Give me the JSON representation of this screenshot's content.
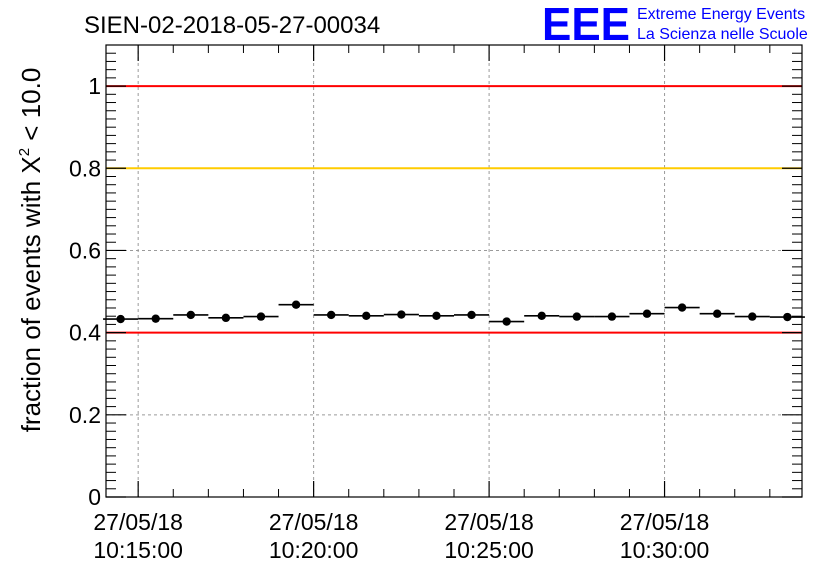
{
  "header": {
    "run_title": "SIEN-02-2018-05-27-00034",
    "logo": {
      "letters": "EEE",
      "line1": "Extreme Energy Events",
      "line2": "La Scienza nelle Scuole",
      "color": "#0000ff"
    }
  },
  "chart_data": {
    "type": "scatter",
    "title": "",
    "xlabel": "",
    "ylabel_prefix": "fraction of events with ",
    "ylabel_symbol": "X",
    "ylabel_superscript": "2",
    "ylabel_suffix": " < 10.0",
    "x_range": [
      "2018-05-27 10:14:05",
      "2018-05-27 10:33:55"
    ],
    "ylim": [
      0,
      1.1
    ],
    "grid": true,
    "x_ticks": [
      {
        "date": "27/05/18",
        "time": "10:15:00"
      },
      {
        "date": "27/05/18",
        "time": "10:20:00"
      },
      {
        "date": "27/05/18",
        "time": "10:25:00"
      },
      {
        "date": "27/05/18",
        "time": "10:30:00"
      }
    ],
    "y_ticks": [
      "0",
      "0.2",
      "0.4",
      "0.6",
      "0.8",
      "1"
    ],
    "y_tick_values": [
      0,
      0.2,
      0.4,
      0.6,
      0.8,
      1
    ],
    "reference_lines": [
      {
        "y": 1.0,
        "color": "#ff0000"
      },
      {
        "y": 0.8,
        "color": "#ffcc00"
      },
      {
        "y": 0.4,
        "color": "#ff0000"
      }
    ],
    "bin_width_seconds": 60,
    "points": [
      {
        "x": "10:14:30",
        "y": 0.433
      },
      {
        "x": "10:15:30",
        "y": 0.434
      },
      {
        "x": "10:16:30",
        "y": 0.443
      },
      {
        "x": "10:17:30",
        "y": 0.436
      },
      {
        "x": "10:18:30",
        "y": 0.439
      },
      {
        "x": "10:19:30",
        "y": 0.468
      },
      {
        "x": "10:20:30",
        "y": 0.443
      },
      {
        "x": "10:21:30",
        "y": 0.441
      },
      {
        "x": "10:22:30",
        "y": 0.444
      },
      {
        "x": "10:23:30",
        "y": 0.441
      },
      {
        "x": "10:24:30",
        "y": 0.443
      },
      {
        "x": "10:25:30",
        "y": 0.427
      },
      {
        "x": "10:26:30",
        "y": 0.441
      },
      {
        "x": "10:27:30",
        "y": 0.439
      },
      {
        "x": "10:28:30",
        "y": 0.439
      },
      {
        "x": "10:29:30",
        "y": 0.446
      },
      {
        "x": "10:30:30",
        "y": 0.461
      },
      {
        "x": "10:31:30",
        "y": 0.446
      },
      {
        "x": "10:32:30",
        "y": 0.439
      },
      {
        "x": "10:33:30",
        "y": 0.438
      }
    ],
    "colors": {
      "marker": "#000000",
      "grid": "#9a9a9a",
      "axis": "#000000"
    }
  }
}
